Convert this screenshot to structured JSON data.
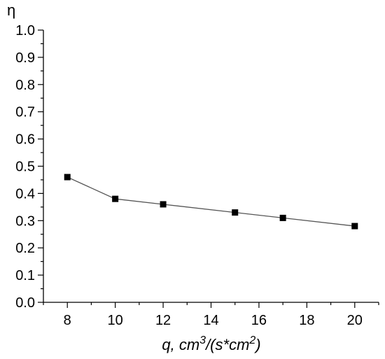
{
  "chart_data": {
    "type": "line",
    "x": [
      8,
      10,
      12,
      15,
      17,
      20
    ],
    "series": [
      {
        "values": [
          0.46,
          0.38,
          0.36,
          0.33,
          0.31,
          0.28
        ]
      }
    ],
    "xlim": [
      7,
      21
    ],
    "ylim": [
      0.0,
      1.0
    ],
    "x_ticks": [
      "8",
      "10",
      "12",
      "14",
      "16",
      "18",
      "20"
    ],
    "y_ticks": [
      "0.0",
      "0.1",
      "0.2",
      "0.3",
      "0.4",
      "0.5",
      "0.6",
      "0.7",
      "0.8",
      "0.9",
      "1.0"
    ],
    "ylabel": "η",
    "xlabel": {
      "main": "q, cm",
      "sup1": "3",
      "mid": "/(s*cm",
      "sup2": "2",
      "end": ")"
    },
    "grid": false,
    "colors": {
      "line": "#555555",
      "marker": "#000000",
      "axis": "#000000"
    }
  }
}
